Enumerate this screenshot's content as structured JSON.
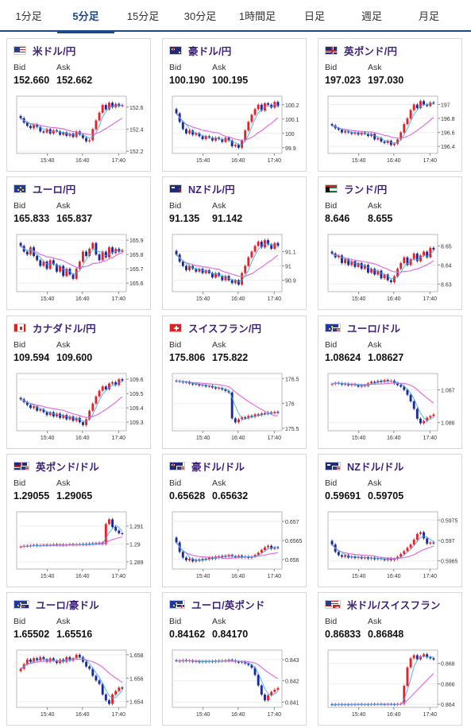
{
  "tabs": [
    {
      "label": "1分足",
      "active": false
    },
    {
      "label": "5分足",
      "active": true
    },
    {
      "label": "15分足",
      "active": false
    },
    {
      "label": "30分足",
      "active": false
    },
    {
      "label": "1時間足",
      "active": false
    },
    {
      "label": "日足",
      "active": false
    },
    {
      "label": "週足",
      "active": false
    },
    {
      "label": "月足",
      "active": false
    }
  ],
  "labels": {
    "bid": "Bid",
    "ask": "Ask"
  },
  "colors": {
    "up": "#e8202a",
    "down": "#1a2a9a",
    "ma_long": "#e070e0",
    "ma_short": "#3aa8e8",
    "pair": "#3c1f7a",
    "active_tab": "#1a4a8a"
  },
  "cards": [
    {
      "pair": "米ドル/円",
      "flag": "flag-us",
      "bid": "152.660",
      "ask": "152.662",
      "chart_data": {
        "type": "candlestick",
        "x_ticks": [
          "15:40",
          "16:40",
          "17:40"
        ],
        "y_ticks": [
          "152.6",
          "152.4",
          "152.2"
        ],
        "ylim": [
          152.18,
          152.7
        ],
        "closes": [
          152.5,
          152.46,
          152.43,
          152.41,
          152.44,
          152.42,
          152.38,
          152.37,
          152.4,
          152.36,
          152.39,
          152.38,
          152.35,
          152.37,
          152.34,
          152.36,
          152.33,
          152.38,
          152.35,
          152.32,
          152.29,
          152.3,
          152.4,
          152.48,
          152.55,
          152.62,
          152.58,
          152.64,
          152.6,
          152.63,
          152.61,
          152.62
        ]
      }
    },
    {
      "pair": "豪ドル/円",
      "flag": "flag-au",
      "bid": "100.190",
      "ask": "100.195",
      "chart_data": {
        "type": "candlestick",
        "x_ticks": [
          "15:40",
          "16:40",
          "17:40"
        ],
        "y_ticks": [
          "100.2",
          "100.1",
          "100",
          "99.9"
        ],
        "ylim": [
          99.86,
          100.26
        ],
        "closes": [
          100.14,
          100.08,
          100.03,
          100.0,
          100.02,
          99.99,
          100.0,
          99.98,
          99.96,
          99.98,
          99.97,
          99.95,
          99.97,
          99.96,
          99.94,
          99.97,
          99.95,
          99.91,
          99.92,
          99.9,
          99.95,
          100.02,
          100.08,
          100.13,
          100.17,
          100.2,
          100.16,
          100.21,
          100.2,
          100.18,
          100.22,
          100.19
        ]
      }
    },
    {
      "pair": "英ポンド/円",
      "flag": "flag-gb",
      "bid": "197.023",
      "ask": "197.030",
      "chart_data": {
        "type": "candlestick",
        "x_ticks": [
          "15:40",
          "16:40",
          "17:40"
        ],
        "y_ticks": [
          "197",
          "196.8",
          "196.6",
          "196.4"
        ],
        "ylim": [
          196.3,
          197.12
        ],
        "closes": [
          196.7,
          196.66,
          196.64,
          196.6,
          196.62,
          196.6,
          196.58,
          196.6,
          196.57,
          196.6,
          196.58,
          196.55,
          196.58,
          196.5,
          196.52,
          196.47,
          196.45,
          196.48,
          196.42,
          196.44,
          196.5,
          196.6,
          196.72,
          196.8,
          196.92,
          197.0,
          196.95,
          197.05,
          197.0,
          196.98,
          197.03,
          197.02
        ]
      }
    },
    {
      "pair": "ユーロ/円",
      "flag": "flag-eu",
      "bid": "165.833",
      "ask": "165.837",
      "chart_data": {
        "type": "candlestick",
        "x_ticks": [
          "15:40",
          "16:40",
          "17:40"
        ],
        "y_ticks": [
          "165.9",
          "165.8",
          "165.7",
          "165.6"
        ],
        "ylim": [
          165.54,
          165.94
        ],
        "closes": [
          165.86,
          165.82,
          165.8,
          165.85,
          165.79,
          165.76,
          165.72,
          165.75,
          165.7,
          165.76,
          165.73,
          165.68,
          165.72,
          165.65,
          165.7,
          165.66,
          165.63,
          165.7,
          165.75,
          165.82,
          165.79,
          165.84,
          165.88,
          165.8,
          165.76,
          165.82,
          165.78,
          165.85,
          165.81,
          165.84,
          165.82,
          165.83
        ]
      }
    },
    {
      "pair": "NZドル/円",
      "flag": "flag-nz",
      "bid": "91.135",
      "ask": "91.142",
      "chart_data": {
        "type": "candlestick",
        "x_ticks": [
          "15:40",
          "16:40",
          "17:40"
        ],
        "y_ticks": [
          "91.1",
          "91",
          "90.9"
        ],
        "ylim": [
          90.82,
          91.22
        ],
        "closes": [
          91.08,
          91.03,
          91.0,
          90.97,
          91.0,
          90.98,
          90.96,
          90.98,
          90.95,
          90.97,
          90.95,
          90.92,
          90.95,
          90.93,
          90.9,
          90.93,
          90.9,
          90.88,
          90.9,
          90.87,
          90.95,
          91.0,
          91.06,
          91.1,
          91.14,
          91.17,
          91.13,
          91.18,
          91.15,
          91.12,
          91.16,
          91.14
        ]
      }
    },
    {
      "pair": "ランド/円",
      "flag": "flag-za",
      "bid": "8.646",
      "ask": "8.655",
      "chart_data": {
        "type": "candlestick",
        "x_ticks": [
          "15:40",
          "16:40",
          "17:40"
        ],
        "y_ticks": [
          "8.65",
          "8.64",
          "8.63"
        ],
        "ylim": [
          8.626,
          8.656
        ],
        "closes": [
          8.646,
          8.644,
          8.645,
          8.641,
          8.643,
          8.64,
          8.642,
          8.639,
          8.641,
          8.638,
          8.64,
          8.636,
          8.638,
          8.635,
          8.637,
          8.633,
          8.635,
          8.632,
          8.631,
          8.634,
          8.638,
          8.641,
          8.644,
          8.64,
          8.643,
          8.646,
          8.642,
          8.645,
          8.647,
          8.644,
          8.649,
          8.648
        ]
      }
    },
    {
      "pair": "カナダドル/円",
      "flag": "flag-ca",
      "bid": "109.594",
      "ask": "109.600",
      "chart_data": {
        "type": "candlestick",
        "x_ticks": [
          "15:40",
          "16:40",
          "17:40"
        ],
        "y_ticks": [
          "109.6",
          "109.5",
          "109.4",
          "109.3"
        ],
        "ylim": [
          109.24,
          109.64
        ],
        "closes": [
          109.46,
          109.44,
          109.42,
          109.4,
          109.41,
          109.38,
          109.39,
          109.37,
          109.35,
          109.37,
          109.34,
          109.36,
          109.33,
          109.35,
          109.32,
          109.34,
          109.31,
          109.33,
          109.3,
          109.28,
          109.32,
          109.38,
          109.43,
          109.48,
          109.52,
          109.55,
          109.53,
          109.57,
          109.58,
          109.56,
          109.6,
          109.59
        ]
      }
    },
    {
      "pair": "スイスフラン/円",
      "flag": "flag-ch",
      "bid": "175.806",
      "ask": "175.822",
      "chart_data": {
        "type": "candlestick",
        "x_ticks": [
          "15:40",
          "16:40",
          "17:40"
        ],
        "y_ticks": [
          "176.5",
          "176",
          "175.5"
        ],
        "ylim": [
          175.45,
          176.6
        ],
        "closes": [
          176.45,
          176.44,
          176.42,
          176.43,
          176.4,
          176.38,
          176.39,
          176.36,
          176.37,
          176.34,
          176.35,
          176.32,
          176.3,
          176.31,
          176.28,
          176.25,
          176.22,
          175.7,
          175.62,
          175.68,
          175.72,
          175.7,
          175.75,
          175.73,
          175.78,
          175.76,
          175.8,
          175.79,
          175.82,
          175.8,
          175.83,
          175.81
        ]
      }
    },
    {
      "pair": "ユーロ/ドル",
      "flag": "flag-eu-us",
      "bid": "1.08624",
      "ask": "1.08627",
      "chart_data": {
        "type": "candlestick",
        "x_ticks": [
          "15:40",
          "16:40",
          "17:40"
        ],
        "y_ticks": [
          "1.087",
          "1.086"
        ],
        "ylim": [
          1.08575,
          1.0875
        ],
        "closes": [
          1.08718,
          1.08722,
          1.0872,
          1.08716,
          1.08719,
          1.08714,
          1.08717,
          1.08715,
          1.0871,
          1.08714,
          1.08712,
          1.0872,
          1.08725,
          1.08722,
          1.08728,
          1.08724,
          1.0873,
          1.08726,
          1.08728,
          1.0872,
          1.08715,
          1.0871,
          1.087,
          1.08685,
          1.08665,
          1.08642,
          1.08612,
          1.08598,
          1.08605,
          1.08615,
          1.0862,
          1.08625
        ]
      }
    },
    {
      "pair": "英ポンド/ドル",
      "flag": "flag-gb-us",
      "bid": "1.29055",
      "ask": "1.29065",
      "chart_data": {
        "type": "candlestick",
        "x_ticks": [
          "15:40",
          "16:40",
          "17:40"
        ],
        "y_ticks": [
          "1.291",
          "1.29",
          "1.289"
        ],
        "ylim": [
          1.2886,
          1.2918
        ],
        "closes": [
          1.28985,
          1.2899,
          1.28988,
          1.28992,
          1.28995,
          1.2899,
          1.28993,
          1.28996,
          1.28992,
          1.28995,
          1.28998,
          1.28994,
          1.28997,
          1.28993,
          1.28996,
          1.28999,
          1.28995,
          1.28998,
          1.29,
          1.28996,
          1.29002,
          1.28998,
          1.29005,
          1.29002,
          1.29008,
          1.29,
          1.29112,
          1.29138,
          1.29095,
          1.29075,
          1.2906,
          1.29058
        ]
      }
    },
    {
      "pair": "豪ドル/ドル",
      "flag": "flag-au-us",
      "bid": "0.65628",
      "ask": "0.65632",
      "chart_data": {
        "type": "candlestick",
        "x_ticks": [
          "15:40",
          "16:40",
          "17:40"
        ],
        "y_ticks": [
          "0.657",
          "0.6565",
          "0.656"
        ],
        "ylim": [
          0.65575,
          0.65725
        ],
        "closes": [
          0.65645,
          0.6562,
          0.65605,
          0.65598,
          0.65602,
          0.65595,
          0.656,
          0.65597,
          0.65602,
          0.656,
          0.65605,
          0.65602,
          0.65608,
          0.65605,
          0.6561,
          0.65608,
          0.65612,
          0.65608,
          0.65606,
          0.6561,
          0.65605,
          0.65608,
          0.65604,
          0.65608,
          0.65612,
          0.65618,
          0.65625,
          0.65632,
          0.65636,
          0.65628,
          0.65632,
          0.6563
        ]
      }
    },
    {
      "pair": "NZドル/ドル",
      "flag": "flag-nz-us",
      "bid": "0.59691",
      "ask": "0.59705",
      "chart_data": {
        "type": "candlestick",
        "x_ticks": [
          "15:40",
          "16:40",
          "17:40"
        ],
        "y_ticks": [
          "0.5975",
          "0.597",
          "0.5965"
        ],
        "ylim": [
          0.5963,
          0.5977
        ],
        "closes": [
          0.5969,
          0.59672,
          0.59664,
          0.5966,
          0.59664,
          0.59658,
          0.59661,
          0.59657,
          0.5966,
          0.59656,
          0.59659,
          0.59655,
          0.59658,
          0.59654,
          0.59657,
          0.59655,
          0.59652,
          0.59656,
          0.59652,
          0.59655,
          0.5966,
          0.59667,
          0.59674,
          0.59682,
          0.5969,
          0.59702,
          0.59716,
          0.5972,
          0.59705,
          0.59692,
          0.59695,
          0.59693
        ]
      }
    },
    {
      "pair": "ユーロ/豪ドル",
      "flag": "flag-eu-au",
      "bid": "1.65502",
      "ask": "1.65516",
      "chart_data": {
        "type": "candlestick",
        "x_ticks": [
          "15:40",
          "16:40",
          "17:40"
        ],
        "y_ticks": [
          "1.658",
          "1.656",
          "1.654"
        ],
        "ylim": [
          1.6535,
          1.6584
        ],
        "closes": [
          1.6568,
          1.6572,
          1.6576,
          1.6574,
          1.6577,
          1.6575,
          1.6578,
          1.6576,
          1.6574,
          1.6577,
          1.6575,
          1.6573,
          1.6576,
          1.6574,
          1.6578,
          1.6575,
          1.6577,
          1.658,
          1.6578,
          1.6574,
          1.657,
          1.6568,
          1.6562,
          1.6558,
          1.6555,
          1.6546,
          1.6541,
          1.6538,
          1.6546,
          1.6549,
          1.6552,
          1.6551
        ]
      }
    },
    {
      "pair": "ユーロ/英ポンド",
      "flag": "flag-eu-gb",
      "bid": "0.84162",
      "ask": "0.84170",
      "chart_data": {
        "type": "candlestick",
        "x_ticks": [
          "15:40",
          "16:40",
          "17:40"
        ],
        "y_ticks": [
          "0.843",
          "0.842",
          "0.841"
        ],
        "ylim": [
          0.84075,
          0.84345
        ],
        "closes": [
          0.84295,
          0.84292,
          0.84298,
          0.84294,
          0.84296,
          0.8429,
          0.84293,
          0.84288,
          0.84292,
          0.84289,
          0.84293,
          0.8429,
          0.84295,
          0.84292,
          0.84296,
          0.84293,
          0.84299,
          0.84296,
          0.8429,
          0.84286,
          0.8429,
          0.84282,
          0.84275,
          0.84262,
          0.84228,
          0.84178,
          0.84135,
          0.84108,
          0.84132,
          0.84148,
          0.84158,
          0.84166
        ]
      }
    },
    {
      "pair": "米ドル/スイスフラン",
      "flag": "flag-us-ch",
      "bid": "0.86833",
      "ask": "0.86848",
      "chart_data": {
        "type": "candlestick",
        "x_ticks": [
          "15:40",
          "16:40",
          "17:40"
        ],
        "y_ticks": [
          "0.868",
          "0.866",
          "0.864"
        ],
        "ylim": [
          0.8637,
          0.8693
        ],
        "closes": [
          0.86398,
          0.86396,
          0.864,
          0.86397,
          0.86399,
          0.86396,
          0.864,
          0.86398,
          0.86401,
          0.86398,
          0.864,
          0.86397,
          0.86402,
          0.864,
          0.86403,
          0.864,
          0.86398,
          0.86402,
          0.864,
          0.86398,
          0.86402,
          0.86405,
          0.8658,
          0.8676,
          0.8685,
          0.8688,
          0.8684,
          0.8687,
          0.8689,
          0.8686,
          0.8685,
          0.86838
        ]
      }
    }
  ]
}
